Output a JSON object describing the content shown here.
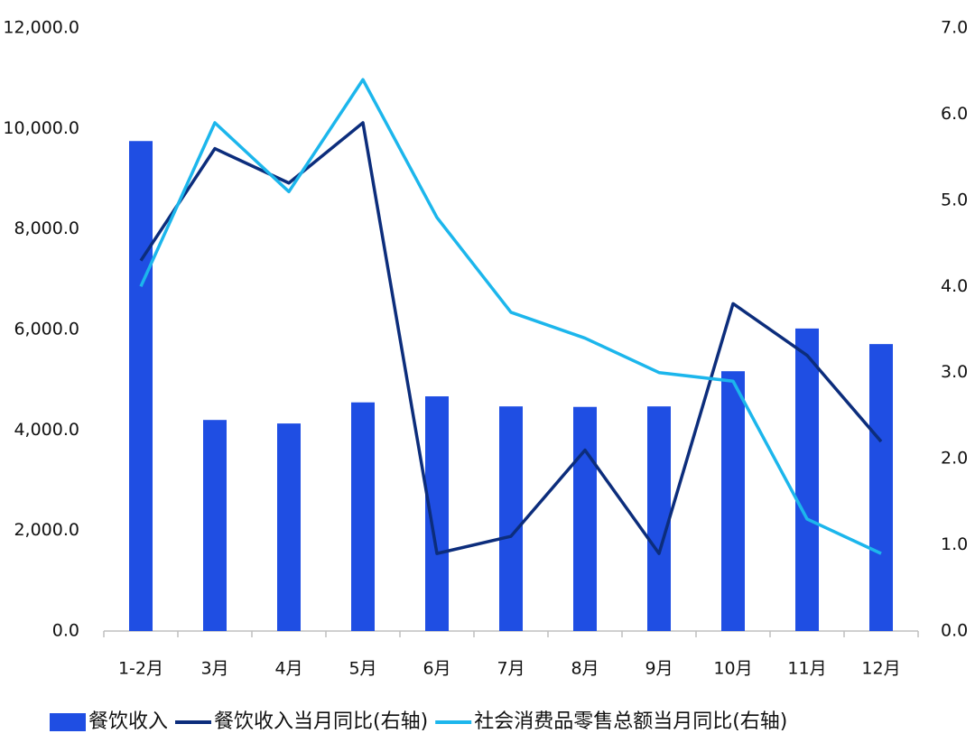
{
  "chart_data": {
    "type": "bar",
    "categories": [
      "1-2月",
      "3月",
      "4月",
      "5月",
      "6月",
      "7月",
      "8月",
      "9月",
      "10月",
      "11月",
      "12月"
    ],
    "series": [
      {
        "name": "餐饮收入",
        "type": "bar",
        "color": "#1f4ee3",
        "values": [
          9750,
          4200,
          4130,
          4550,
          4670,
          4470,
          4460,
          4470,
          5170,
          6020,
          5710
        ]
      },
      {
        "name": "餐饮收入当月同比(右轴)",
        "type": "line",
        "axis": "y2",
        "color": "#0c2d7c",
        "values": [
          4.3,
          5.6,
          5.2,
          5.9,
          0.9,
          1.1,
          2.1,
          0.9,
          3.8,
          3.2,
          2.2
        ]
      },
      {
        "name": "社会消费品零售总额当月同比(右轴)",
        "type": "line",
        "axis": "y2",
        "color": "#1cb6ec",
        "values": [
          4.0,
          5.9,
          5.1,
          6.4,
          4.8,
          3.7,
          3.4,
          3.0,
          2.9,
          1.3,
          0.9
        ]
      }
    ],
    "ylim": [
      0,
      12000
    ],
    "yticks": [
      {
        "value": 0,
        "label": "0.0"
      },
      {
        "value": 2000,
        "label": "2,000.0"
      },
      {
        "value": 4000,
        "label": "4,000.0"
      },
      {
        "value": 6000,
        "label": "6,000.0"
      },
      {
        "value": 8000,
        "label": "8,000.0"
      },
      {
        "value": 10000,
        "label": "10,000.0"
      },
      {
        "value": 12000,
        "label": "12,000.0"
      }
    ],
    "y2lim": [
      0,
      7
    ],
    "y2ticks": [
      {
        "value": 0,
        "label": "0.0"
      },
      {
        "value": 1,
        "label": "1.0"
      },
      {
        "value": 2,
        "label": "2.0"
      },
      {
        "value": 3,
        "label": "3.0"
      },
      {
        "value": 4,
        "label": "4.0"
      },
      {
        "value": 5,
        "label": "5.0"
      },
      {
        "value": 6,
        "label": "6.0"
      },
      {
        "value": 7,
        "label": "7.0"
      }
    ],
    "grid": false,
    "legend": "bottom"
  }
}
